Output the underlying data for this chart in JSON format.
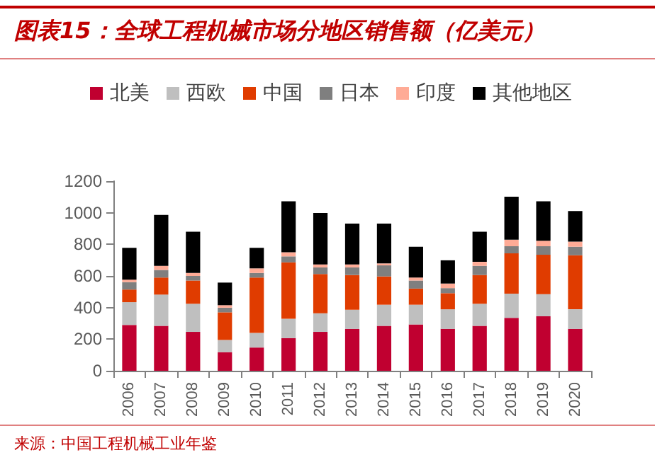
{
  "chart_data": {
    "type": "bar",
    "stacked": true,
    "title": "图表15：全球工程机械市场分地区销售额（亿美元）",
    "categories": [
      "2006",
      "2007",
      "2008",
      "2009",
      "2010",
      "2011",
      "2012",
      "2013",
      "2014",
      "2015",
      "2016",
      "2017",
      "2018",
      "2019",
      "2020"
    ],
    "series": [
      {
        "name": "北美",
        "color": "#c00030",
        "values": [
          290,
          284,
          246,
          118,
          147,
          207,
          246,
          265,
          284,
          293,
          265,
          284,
          335,
          345,
          265
        ]
      },
      {
        "name": "西欧",
        "color": "#bfbfbf",
        "values": [
          144,
          198,
          178,
          77,
          92,
          122,
          118,
          121,
          134,
          125,
          124,
          140,
          153,
          140,
          124
        ]
      },
      {
        "name": "中国",
        "color": "#e03c00",
        "values": [
          80,
          108,
          147,
          175,
          351,
          357,
          248,
          220,
          179,
          102,
          102,
          182,
          255,
          249,
          342
        ]
      },
      {
        "name": "日本",
        "color": "#7f7f7f",
        "values": [
          47,
          48,
          29,
          29,
          29,
          38,
          42,
          48,
          70,
          51,
          32,
          58,
          45,
          54,
          54
        ]
      },
      {
        "name": "印度",
        "color": "#ffab96",
        "values": [
          16,
          26,
          19,
          16,
          29,
          26,
          19,
          19,
          12,
          19,
          29,
          25,
          41,
          35,
          32
        ]
      },
      {
        "name": "其他地区",
        "color": "#000000",
        "values": [
          201,
          322,
          261,
          143,
          130,
          322,
          325,
          258,
          252,
          195,
          147,
          191,
          272,
          249,
          194
        ]
      }
    ],
    "ylim": [
      0,
      1200
    ],
    "yticks": [
      0,
      200,
      400,
      600,
      800,
      1000,
      1200
    ],
    "grid": false,
    "legend": "top",
    "annotations": [
      "来源：中国工程机械工业年鉴"
    ]
  }
}
